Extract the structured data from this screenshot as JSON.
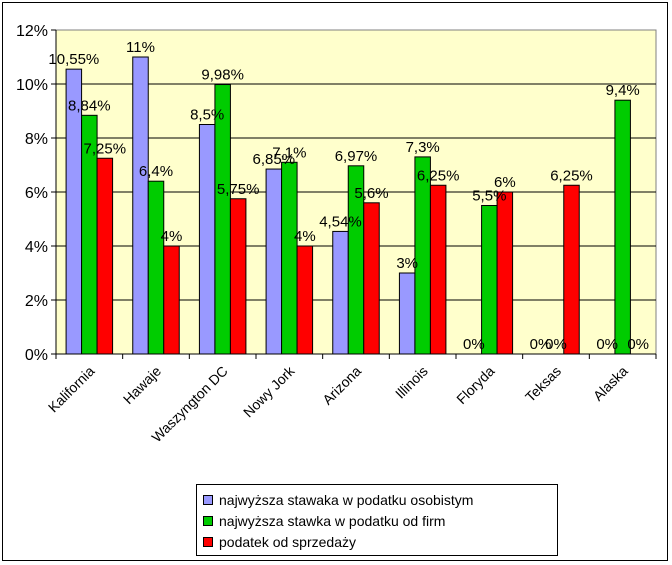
{
  "chart_data": {
    "type": "bar",
    "categories": [
      "Kalifornia",
      "Hawaje",
      "Waszyngton DC",
      "Nowy Jork",
      "Arizona",
      "Illinois",
      "Floryda",
      "Teksas",
      "Alaska"
    ],
    "series": [
      {
        "name": "najwyższa stawaka w podatku osobistym",
        "color": "#9999ff",
        "values": [
          10.55,
          11,
          8.5,
          6.85,
          4.54,
          3,
          0,
          0,
          0
        ],
        "labels": [
          "10,55%",
          "11%",
          "8,5%",
          "6,85%",
          "4,54%",
          "3%",
          "0%",
          "0%",
          "0%"
        ]
      },
      {
        "name": "najwyższa stawka w podatku od firm",
        "color": "#00cc00",
        "values": [
          8.84,
          6.4,
          9.98,
          7.1,
          6.97,
          7.3,
          5.5,
          0,
          9.4
        ],
        "labels": [
          "8,84%",
          "6,4%",
          "9,98%",
          "7,1%",
          "6,97%",
          "7,3%",
          "5,5%",
          "0%",
          "9,4%"
        ]
      },
      {
        "name": "podatek od sprzedaży",
        "color": "#ff0000",
        "values": [
          7.25,
          4,
          5.75,
          4,
          5.6,
          6.25,
          6,
          6.25,
          0
        ],
        "labels": [
          "7,25%",
          "4%",
          "5,75%",
          "4%",
          "5,6%",
          "6,25%",
          "6%",
          "6,25%",
          "0%"
        ]
      }
    ],
    "y_ticks": [
      "0%",
      "2%",
      "4%",
      "6%",
      "8%",
      "10%",
      "12%"
    ],
    "ylim": [
      0,
      12
    ],
    "grid": true,
    "plot_background": "#ffffcc",
    "legend_position": "bottom"
  }
}
